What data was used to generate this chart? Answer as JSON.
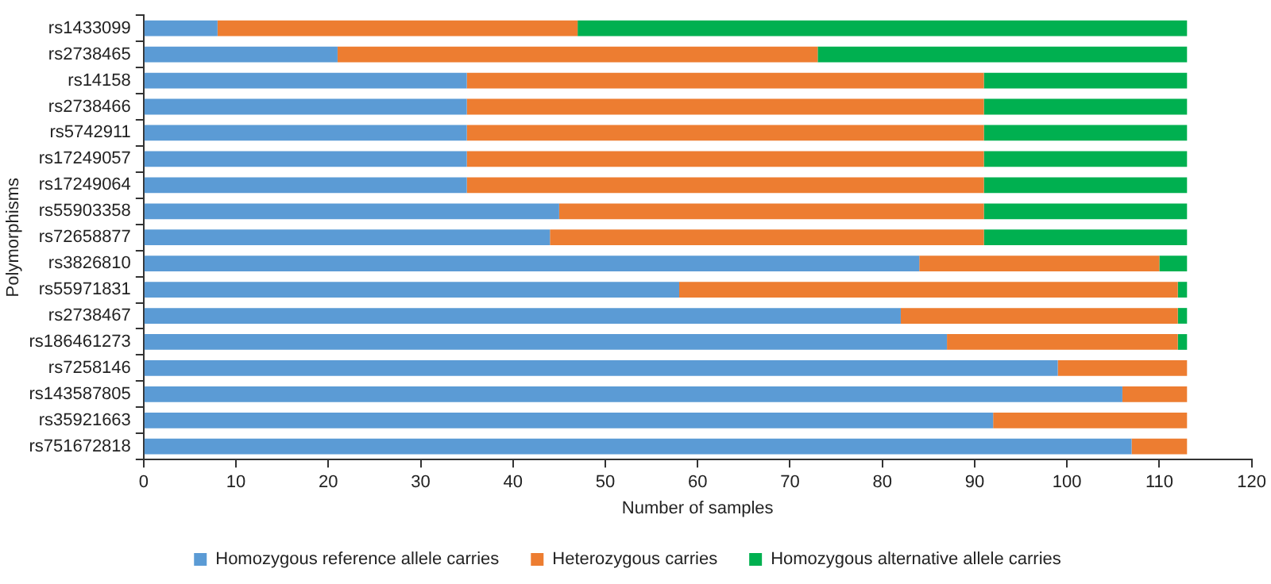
{
  "chart_data": {
    "type": "bar",
    "orientation": "horizontal",
    "stacked": true,
    "xlabel": "Number of samples",
    "ylabel": "Polymorphisms",
    "categories": [
      "rs1433099",
      "rs2738465",
      "rs14158",
      "rs2738466",
      "rs5742911",
      "rs17249057",
      "rs17249064",
      "rs55903358",
      "rs72658877",
      "rs3826810",
      "rs55971831",
      "rs2738467",
      "rs186461273",
      "rs7258146",
      "rs143587805",
      "rs35921663",
      "rs751672818"
    ],
    "series": [
      {
        "name": "Homozygous reference allele carries",
        "color": "#5b9bd5",
        "values": [
          8,
          21,
          35,
          35,
          35,
          35,
          35,
          45,
          44,
          84,
          58,
          82,
          87,
          99,
          106,
          92,
          107
        ]
      },
      {
        "name": "Heterozygous carries",
        "color": "#ed7d31",
        "values": [
          39,
          52,
          56,
          56,
          56,
          56,
          56,
          46,
          47,
          26,
          54,
          30,
          25,
          14,
          7,
          21,
          6
        ]
      },
      {
        "name": "Homozygous alternative allele carries",
        "color": "#00b050",
        "values": [
          66,
          40,
          22,
          22,
          22,
          22,
          22,
          22,
          22,
          3,
          1,
          1,
          1,
          0,
          0,
          0,
          0
        ]
      }
    ],
    "xlim": [
      0,
      120
    ],
    "xticks": [
      0,
      10,
      20,
      30,
      40,
      50,
      60,
      70,
      80,
      90,
      100,
      110,
      120
    ],
    "grid": false,
    "legend": "bottom"
  }
}
